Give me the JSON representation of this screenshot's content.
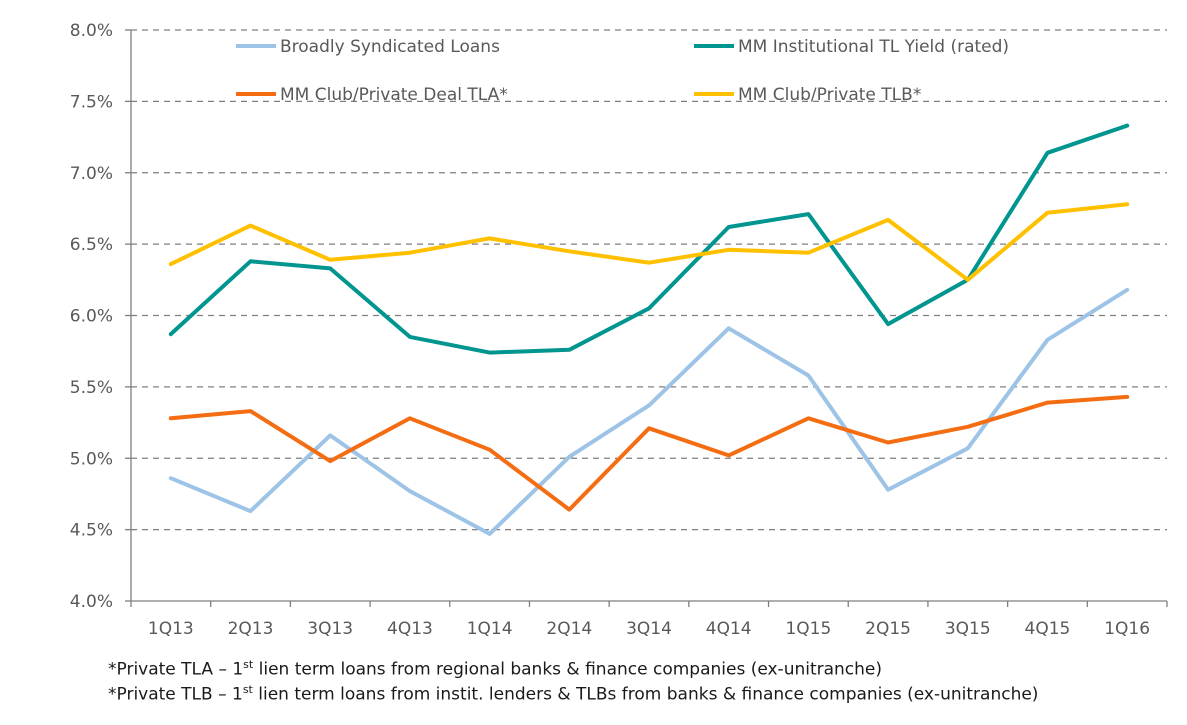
{
  "chart_data": {
    "type": "line",
    "categories": [
      "1Q13",
      "2Q13",
      "3Q13",
      "4Q13",
      "1Q14",
      "2Q14",
      "3Q14",
      "4Q14",
      "1Q15",
      "2Q15",
      "3Q15",
      "4Q15",
      "1Q16"
    ],
    "ylim": [
      4.0,
      8.0
    ],
    "yticks": [
      4.0,
      4.5,
      5.0,
      5.5,
      6.0,
      6.5,
      7.0,
      7.5,
      8.0
    ],
    "ytick_labels": [
      "4.0%",
      "4.5%",
      "5.0%",
      "5.5%",
      "6.0%",
      "6.5%",
      "7.0%",
      "7.5%",
      "8.0%"
    ],
    "grid": "horizontal-dashed",
    "legend_position": "top",
    "series": [
      {
        "name": "Broadly Syndicated Loans",
        "color": "#9DC3E6",
        "values": [
          4.86,
          4.63,
          5.16,
          4.77,
          4.47,
          5.01,
          5.37,
          5.91,
          5.58,
          4.78,
          5.07,
          5.83,
          6.18
        ]
      },
      {
        "name": "MM Institutional TL Yield (rated)",
        "color": "#00958F",
        "values": [
          5.87,
          6.38,
          6.33,
          5.85,
          5.74,
          5.76,
          6.05,
          6.62,
          6.71,
          5.94,
          6.25,
          7.14,
          7.33
        ]
      },
      {
        "name": "MM Club/Private Deal TLA*",
        "color": "#F46D12",
        "values": [
          5.28,
          5.33,
          4.98,
          5.28,
          5.06,
          4.64,
          5.21,
          5.02,
          5.28,
          5.11,
          5.22,
          5.39,
          5.43
        ]
      },
      {
        "name": "MM Club/Private TLB*",
        "color": "#FFC000",
        "values": [
          6.36,
          6.63,
          6.39,
          6.44,
          6.54,
          6.45,
          6.37,
          6.46,
          6.44,
          6.67,
          6.25,
          6.72,
          6.78
        ]
      }
    ]
  },
  "footnotes": {
    "line1_prefix": "*Private TLA – 1",
    "line1_sup": "st",
    "line1_suffix": " lien term loans from regional banks & finance companies (ex-unitranche)",
    "line2_prefix": "*Private TLB – 1",
    "line2_sup": "st",
    "line2_suffix": " lien term loans from instit. lenders & TLBs from banks & finance companies (ex-unitranche)"
  }
}
